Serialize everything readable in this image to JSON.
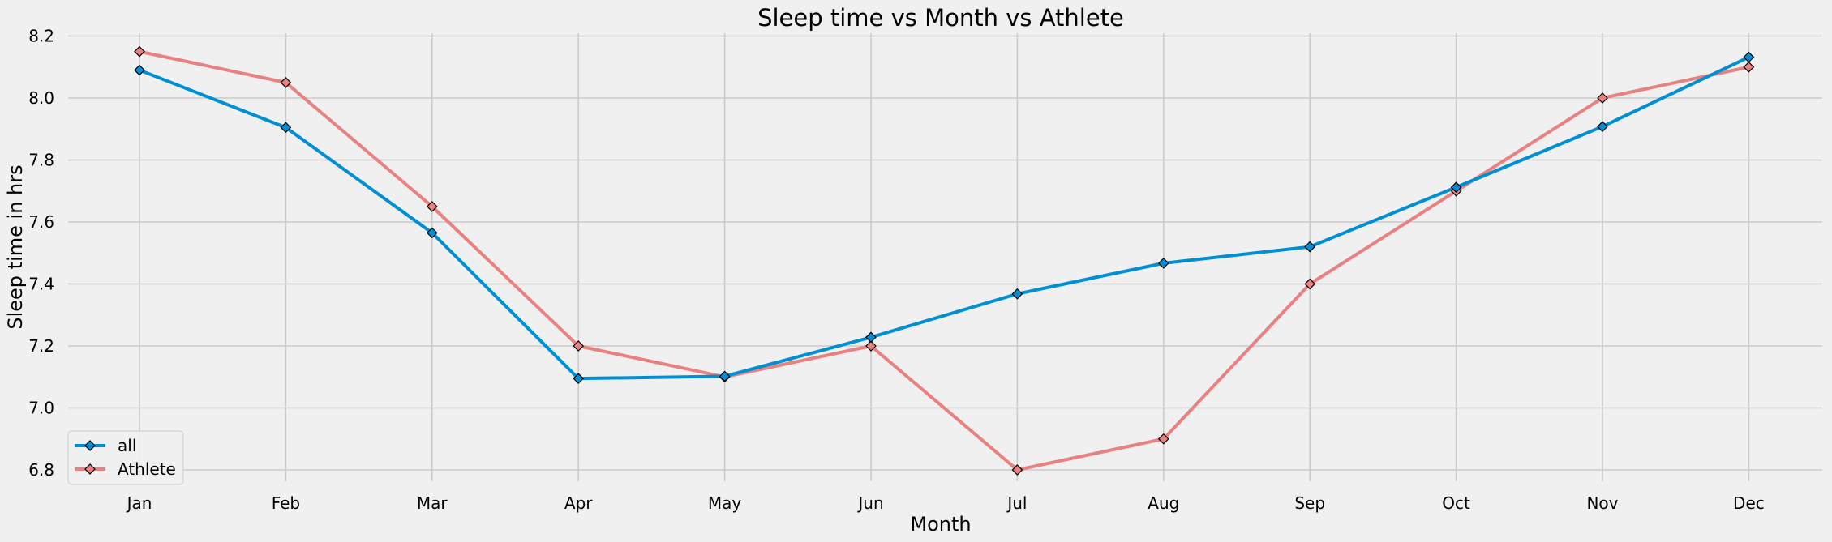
{
  "chart_data": {
    "type": "line",
    "title": "Sleep time vs Month vs Athlete",
    "xlabel": "Month",
    "ylabel": "Sleep time in hrs",
    "categories": [
      "Jan",
      "Feb",
      "Mar",
      "Apr",
      "May",
      "Jun",
      "Jul",
      "Aug",
      "Sep",
      "Oct",
      "Nov",
      "Dec"
    ],
    "ylim": [
      6.75,
      8.2
    ],
    "yticks": [
      "6.8",
      "7.0",
      "7.2",
      "7.4",
      "7.6",
      "7.8",
      "8.0",
      "8.2"
    ],
    "grid": true,
    "legend_position": "lower-left",
    "series": [
      {
        "name": "all",
        "color": "#008fd5",
        "values": [
          8.09,
          7.905,
          7.565,
          7.095,
          7.102,
          7.228,
          7.368,
          7.467,
          7.52,
          7.712,
          7.908,
          8.132
        ]
      },
      {
        "name": "Athlete",
        "color": "#e8817f",
        "values": [
          8.15,
          8.05,
          7.65,
          7.2,
          7.1,
          7.2,
          6.8,
          6.9,
          7.4,
          7.7,
          8.0,
          8.1
        ]
      }
    ]
  }
}
